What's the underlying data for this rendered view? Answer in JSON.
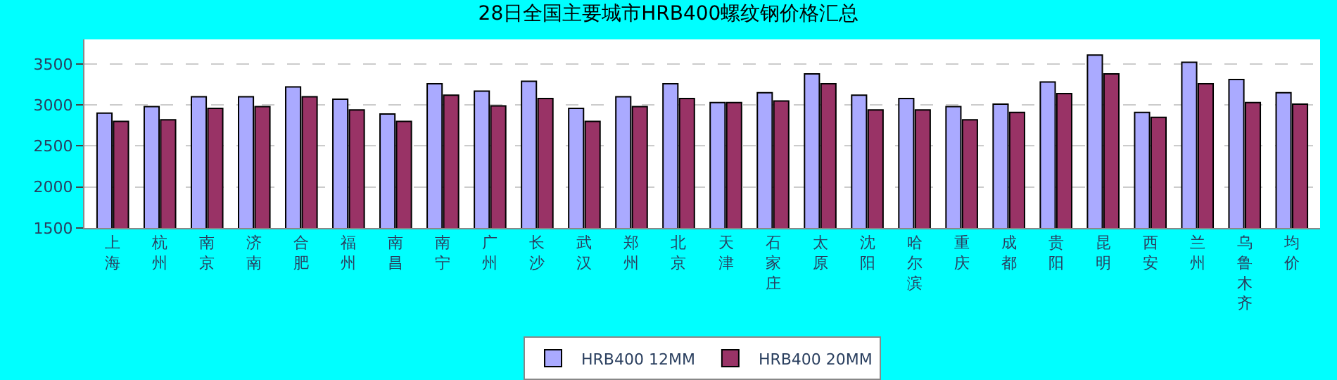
{
  "chart_data": {
    "type": "bar",
    "title": "28日全国主要城市HRB400螺纹钢价格汇总",
    "categories": [
      "上海",
      "杭州",
      "南京",
      "济南",
      "合肥",
      "福州",
      "南昌",
      "南宁",
      "广州",
      "长沙",
      "武汉",
      "郑州",
      "北京",
      "天津",
      "石家庄",
      "太原",
      "沈阳",
      "哈尔滨",
      "重庆",
      "成都",
      "贵阳",
      "昆明",
      "西安",
      "兰州",
      "乌鲁木齐",
      "均价"
    ],
    "series": [
      {
        "name": "HRB400 12MM",
        "color": "#aaaaff",
        "values": [
          2900,
          2980,
          3100,
          3100,
          3220,
          3070,
          2890,
          3260,
          3170,
          3290,
          2960,
          3100,
          3260,
          3030,
          3150,
          3380,
          3120,
          3080,
          2980,
          3010,
          3280,
          3610,
          2910,
          3520,
          3310,
          3150
        ]
      },
      {
        "name": "HRB400 20MM",
        "color": "#993366",
        "values": [
          2800,
          2820,
          2960,
          2980,
          3100,
          2940,
          2800,
          3120,
          2990,
          3080,
          2800,
          2980,
          3080,
          3030,
          3050,
          3260,
          2940,
          2940,
          2820,
          2910,
          3140,
          3380,
          2850,
          3260,
          3030,
          3010
        ]
      }
    ],
    "ylim": [
      1500,
      3800
    ],
    "yticks": [
      1500,
      2000,
      2500,
      3000,
      3500
    ],
    "grid": "y",
    "legend": "bottom"
  }
}
